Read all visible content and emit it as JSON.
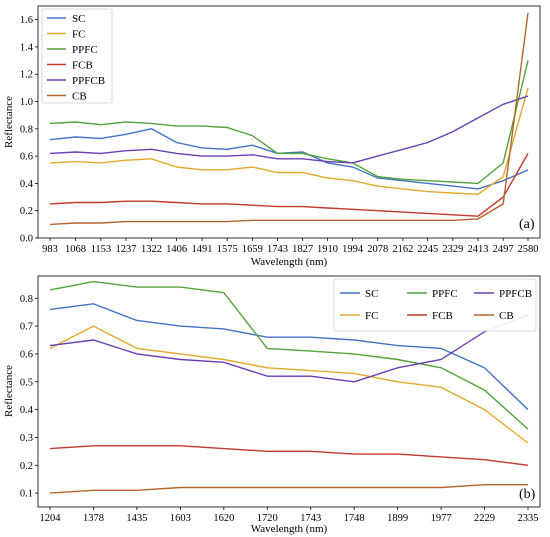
{
  "colors": {
    "SC": "#4472c4",
    "FC": "#e3a92b",
    "PPFC": "#52a43a",
    "FCB": "#c0392b",
    "PPFCB": "#6a3fb5",
    "CB": "#b5652a"
  },
  "chart_data": [
    {
      "type": "line",
      "panel_tag": "(a)",
      "xlabel": "Wavelength (nm)",
      "ylabel": "Reflectance",
      "xlim": [
        983,
        2580
      ],
      "ylim": [
        0.0,
        1.7
      ],
      "grid": false,
      "legend_position": "top-left",
      "x_ticks": [
        983,
        1068,
        1153,
        1237,
        1322,
        1406,
        1491,
        1575,
        1659,
        1743,
        1827,
        1910,
        1994,
        2078,
        2162,
        2245,
        2329,
        2413,
        2497,
        2580
      ],
      "y_ticks": [
        "0.0",
        "0.2",
        "0.4",
        "0.6",
        "0.8",
        "1.0",
        "1.2",
        "1.4",
        "1.6"
      ],
      "x": [
        983,
        1068,
        1153,
        1237,
        1322,
        1406,
        1491,
        1575,
        1659,
        1743,
        1827,
        1910,
        1994,
        2078,
        2162,
        2245,
        2329,
        2413,
        2497,
        2580
      ],
      "series": [
        {
          "name": "SC",
          "values": [
            0.72,
            0.74,
            0.73,
            0.76,
            0.8,
            0.7,
            0.66,
            0.65,
            0.68,
            0.62,
            0.63,
            0.55,
            0.52,
            0.44,
            0.42,
            0.4,
            0.38,
            0.36,
            0.42,
            0.5
          ]
        },
        {
          "name": "FC",
          "values": [
            0.55,
            0.56,
            0.55,
            0.57,
            0.58,
            0.52,
            0.5,
            0.5,
            0.52,
            0.48,
            0.48,
            0.44,
            0.42,
            0.38,
            0.36,
            0.34,
            0.33,
            0.32,
            0.45,
            1.1
          ]
        },
        {
          "name": "PPFC",
          "values": [
            0.84,
            0.85,
            0.83,
            0.85,
            0.84,
            0.82,
            0.82,
            0.81,
            0.75,
            0.62,
            0.62,
            0.58,
            0.55,
            0.45,
            0.43,
            0.42,
            0.41,
            0.4,
            0.55,
            1.3
          ]
        },
        {
          "name": "FCB",
          "values": [
            0.25,
            0.26,
            0.26,
            0.27,
            0.27,
            0.26,
            0.25,
            0.25,
            0.24,
            0.23,
            0.23,
            0.22,
            0.21,
            0.2,
            0.19,
            0.18,
            0.17,
            0.16,
            0.3,
            0.62
          ]
        },
        {
          "name": "PPFCB",
          "values": [
            0.62,
            0.63,
            0.62,
            0.64,
            0.65,
            0.62,
            0.6,
            0.6,
            0.61,
            0.58,
            0.58,
            0.56,
            0.55,
            0.6,
            0.65,
            0.7,
            0.78,
            0.88,
            0.98,
            1.04
          ]
        },
        {
          "name": "CB",
          "values": [
            0.1,
            0.11,
            0.11,
            0.12,
            0.12,
            0.12,
            0.12,
            0.12,
            0.13,
            0.13,
            0.13,
            0.13,
            0.13,
            0.13,
            0.13,
            0.13,
            0.13,
            0.14,
            0.25,
            1.65
          ]
        }
      ]
    },
    {
      "type": "line",
      "panel_tag": "(b)",
      "xlabel": "Wavelength (nm)",
      "ylabel": "Reflectance",
      "ylim": [
        0.05,
        0.88
      ],
      "grid": false,
      "legend_position": "top-right",
      "x_categories": [
        "1204",
        "1378",
        "1435",
        "1603",
        "1620",
        "1720",
        "1743",
        "1748",
        "1899",
        "1977",
        "2229",
        "2335"
      ],
      "y_ticks": [
        "0.1",
        "0.2",
        "0.3",
        "0.4",
        "0.5",
        "0.6",
        "0.7",
        "0.8"
      ],
      "series": [
        {
          "name": "SC",
          "values": [
            0.76,
            0.78,
            0.72,
            0.7,
            0.69,
            0.66,
            0.66,
            0.65,
            0.63,
            0.62,
            0.55,
            0.4
          ]
        },
        {
          "name": "FC",
          "values": [
            0.62,
            0.7,
            0.62,
            0.6,
            0.58,
            0.55,
            0.54,
            0.53,
            0.5,
            0.48,
            0.4,
            0.28
          ]
        },
        {
          "name": "PPFC",
          "values": [
            0.83,
            0.86,
            0.84,
            0.84,
            0.82,
            0.62,
            0.61,
            0.6,
            0.58,
            0.55,
            0.47,
            0.33
          ]
        },
        {
          "name": "FCB",
          "values": [
            0.26,
            0.27,
            0.27,
            0.27,
            0.26,
            0.25,
            0.25,
            0.24,
            0.24,
            0.23,
            0.22,
            0.2
          ]
        },
        {
          "name": "PPFCB",
          "values": [
            0.63,
            0.65,
            0.6,
            0.58,
            0.57,
            0.52,
            0.52,
            0.5,
            0.55,
            0.58,
            0.68,
            0.74
          ]
        },
        {
          "name": "CB",
          "values": [
            0.1,
            0.11,
            0.11,
            0.12,
            0.12,
            0.12,
            0.12,
            0.12,
            0.12,
            0.12,
            0.13,
            0.13
          ]
        }
      ]
    }
  ]
}
